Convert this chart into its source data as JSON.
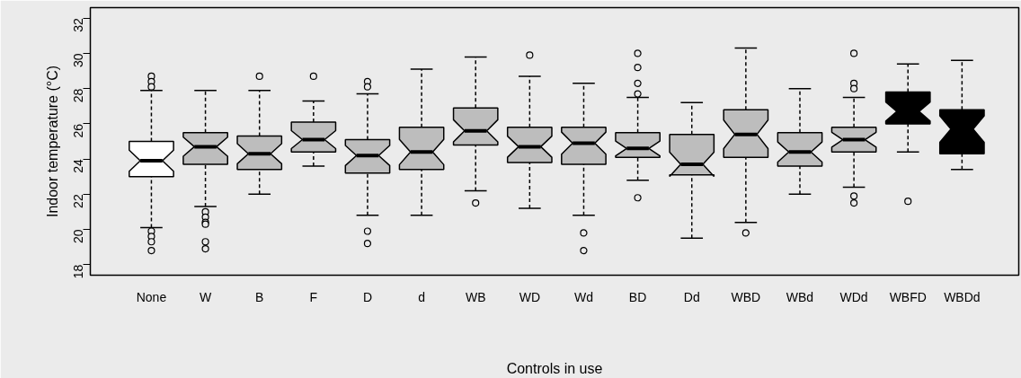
{
  "chart_data": {
    "type": "box",
    "xlabel": "Controls in use",
    "ylabel": "Indoor temperature (°C)",
    "categories": [
      "None",
      "W",
      "B",
      "F",
      "D",
      "d",
      "WB",
      "WD",
      "Wd",
      "BD",
      "Dd",
      "WBD",
      "WBd",
      "WDd",
      "WBFD",
      "WBDd"
    ],
    "colors": [
      "#ffffff",
      "#bdbdbd",
      "#bdbdbd",
      "#bdbdbd",
      "#bdbdbd",
      "#bdbdbd",
      "#bdbdbd",
      "#bdbdbd",
      "#bdbdbd",
      "#bdbdbd",
      "#bdbdbd",
      "#bdbdbd",
      "#bdbdbd",
      "#bdbdbd",
      "#000000",
      "#000000"
    ],
    "boxes": [
      {
        "low": 20.1,
        "q1": 23.0,
        "median": 23.9,
        "q3": 25.0,
        "high": 27.9,
        "outliers": [
          28.7,
          28.4,
          28.1,
          19.9,
          19.6,
          19.3,
          18.8
        ]
      },
      {
        "low": 21.3,
        "q1": 23.7,
        "median": 24.7,
        "q3": 25.5,
        "high": 27.9,
        "outliers": [
          21.0,
          20.7,
          20.4,
          20.3,
          19.3,
          18.9
        ]
      },
      {
        "low": 22.0,
        "q1": 23.4,
        "median": 24.3,
        "q3": 25.3,
        "high": 27.9,
        "outliers": [
          28.7
        ]
      },
      {
        "low": 23.6,
        "q1": 24.4,
        "median": 25.1,
        "q3": 26.1,
        "high": 27.3,
        "outliers": [
          28.7
        ]
      },
      {
        "low": 20.8,
        "q1": 23.2,
        "median": 24.2,
        "q3": 25.1,
        "high": 27.7,
        "outliers": [
          28.4,
          28.1,
          19.9,
          19.2
        ]
      },
      {
        "low": 20.8,
        "q1": 23.4,
        "median": 24.4,
        "q3": 25.8,
        "high": 29.1
      },
      {
        "low": 22.2,
        "q1": 24.8,
        "median": 25.6,
        "q3": 26.9,
        "high": 29.8,
        "outliers": [
          21.5
        ]
      },
      {
        "low": 21.2,
        "q1": 23.8,
        "median": 24.7,
        "q3": 25.8,
        "high": 28.7,
        "outliers": [
          29.9
        ]
      },
      {
        "low": 20.8,
        "q1": 23.7,
        "median": 24.9,
        "q3": 25.8,
        "high": 28.3,
        "outliers": [
          19.8,
          18.8
        ]
      },
      {
        "low": 22.8,
        "q1": 24.1,
        "median": 24.6,
        "q3": 25.5,
        "high": 27.5,
        "outliers": [
          30.0,
          29.2,
          28.3,
          27.7,
          21.8
        ]
      },
      {
        "low": 19.5,
        "q1": 23.1,
        "median": 23.7,
        "q3": 25.4,
        "high": 27.2
      },
      {
        "low": 20.4,
        "q1": 24.1,
        "median": 25.4,
        "q3": 26.8,
        "high": 30.3,
        "outliers": [
          19.8
        ]
      },
      {
        "low": 22.0,
        "q1": 23.6,
        "median": 24.4,
        "q3": 25.5,
        "high": 28.0
      },
      {
        "low": 22.4,
        "q1": 24.4,
        "median": 25.1,
        "q3": 25.8,
        "high": 27.5,
        "outliers": [
          30.0,
          28.3,
          28.0,
          21.9,
          21.5
        ]
      },
      {
        "low": 24.4,
        "q1": 26.0,
        "median": 26.7,
        "q3": 27.8,
        "high": 29.4,
        "outliers": [
          21.6
        ]
      },
      {
        "low": 23.4,
        "q1": 24.3,
        "median": 25.7,
        "q3": 26.8,
        "high": 29.6
      }
    ],
    "ylim": [
      17.4,
      32.6
    ],
    "yticks": [
      18,
      20,
      22,
      24,
      26,
      28,
      30,
      32
    ]
  }
}
